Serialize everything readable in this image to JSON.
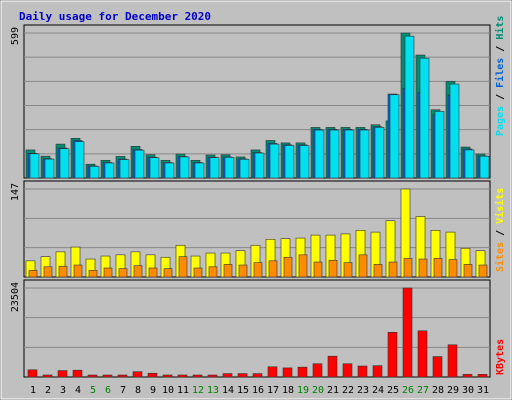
{
  "title": "Daily usage for December 2020",
  "colors": {
    "title": "#0000cc",
    "bg": "#c0c0c0",
    "frame": "#808080",
    "grid": "#888888",
    "hits": "#008c73",
    "files": "#0064dc",
    "pages": "#00e0f0",
    "visits": "#ffff00",
    "sites": "#ff8c00",
    "kbytes": "#ff0000",
    "weekday": "#000000",
    "weekend": "#008000",
    "legend_sep": "#000000"
  },
  "chart_data": [
    {
      "type": "bar",
      "panel": "hits-files-pages",
      "ymax_label": "599",
      "ylim": [
        0,
        599
      ],
      "categories": [
        "1",
        "2",
        "3",
        "4",
        "5",
        "6",
        "7",
        "8",
        "9",
        "10",
        "11",
        "12",
        "13",
        "14",
        "15",
        "16",
        "17",
        "18",
        "19",
        "20",
        "21",
        "22",
        "23",
        "24",
        "25",
        "26",
        "27",
        "28",
        "29",
        "30",
        "31"
      ],
      "weekend": [
        "5",
        "6",
        "12",
        "13",
        "19",
        "20",
        "26",
        "27"
      ],
      "series": [
        {
          "name": "Hits",
          "values": [
            116,
            90,
            140,
            164,
            57,
            73,
            89,
            131,
            96,
            73,
            99,
            73,
            95,
            96,
            87,
            116,
            155,
            145,
            145,
            209,
            209,
            209,
            209,
            220,
            236,
            599,
            508,
            282,
            399,
            128,
            99
          ]
        },
        {
          "name": "Files",
          "values": [
            102,
            80,
            124,
            155,
            50,
            64,
            78,
            118,
            86,
            64,
            89,
            64,
            86,
            87,
            79,
            105,
            143,
            137,
            137,
            201,
            201,
            201,
            201,
            212,
            347,
            370,
            353,
            262,
            342,
            120,
            91
          ]
        },
        {
          "name": "Pages",
          "values": [
            100,
            78,
            121,
            150,
            48,
            62,
            76,
            115,
            84,
            62,
            87,
            62,
            84,
            85,
            77,
            103,
            140,
            134,
            134,
            198,
            198,
            198,
            198,
            209,
            344,
            586,
            495,
            275,
            388,
            116,
            90
          ]
        }
      ],
      "legend": [
        "Pages",
        "Files",
        "Hits"
      ]
    },
    {
      "type": "bar",
      "panel": "visits-sites",
      "ymax_label": "147",
      "ylim": [
        0,
        147
      ],
      "categories": [
        "1",
        "2",
        "3",
        "4",
        "5",
        "6",
        "7",
        "8",
        "9",
        "10",
        "11",
        "12",
        "13",
        "14",
        "15",
        "16",
        "17",
        "18",
        "19",
        "20",
        "21",
        "22",
        "23",
        "24",
        "25",
        "26",
        "27",
        "28",
        "29",
        "30",
        "31"
      ],
      "series": [
        {
          "name": "Visits",
          "values": [
            27,
            34,
            42,
            50,
            30,
            35,
            37,
            42,
            37,
            33,
            53,
            35,
            40,
            40,
            44,
            53,
            63,
            64,
            65,
            70,
            70,
            72,
            78,
            75,
            94,
            147,
            101,
            78,
            75,
            48,
            44
          ]
        },
        {
          "name": "Sites",
          "values": [
            11,
            17,
            18,
            20,
            11,
            15,
            14,
            19,
            15,
            14,
            34,
            15,
            17,
            21,
            20,
            24,
            27,
            33,
            37,
            25,
            28,
            24,
            37,
            21,
            25,
            31,
            30,
            31,
            29,
            21,
            20
          ]
        }
      ],
      "legend": [
        "Sites",
        "Visits"
      ]
    },
    {
      "type": "bar",
      "panel": "kbytes",
      "ymax_label": "23504",
      "ylim": [
        0,
        23504
      ],
      "categories": [
        "1",
        "2",
        "3",
        "4",
        "5",
        "6",
        "7",
        "8",
        "9",
        "10",
        "11",
        "12",
        "13",
        "14",
        "15",
        "16",
        "17",
        "18",
        "19",
        "20",
        "21",
        "22",
        "23",
        "24",
        "25",
        "26",
        "27",
        "28",
        "29",
        "30",
        "31"
      ],
      "series": [
        {
          "name": "KBytes",
          "values": [
            1900,
            260,
            1700,
            1800,
            260,
            260,
            260,
            1400,
            1000,
            260,
            260,
            260,
            260,
            900,
            900,
            900,
            2700,
            2400,
            2600,
            3500,
            5500,
            3500,
            2900,
            3000,
            11800,
            23504,
            12200,
            5400,
            8500,
            700,
            700
          ]
        }
      ],
      "legend": [
        "KBytes"
      ]
    }
  ]
}
